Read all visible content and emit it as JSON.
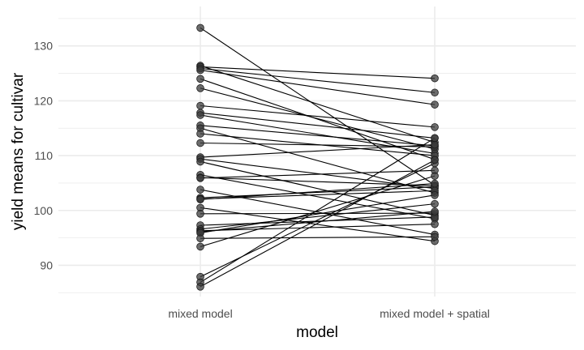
{
  "chart_data": {
    "type": "line",
    "xlabel": "model",
    "ylabel": "yield means for cultivar",
    "categories": [
      "mixed model",
      "mixed model + spatial"
    ],
    "ylim": [
      84.3,
      137.2
    ],
    "yticks": [
      90,
      100,
      110,
      120,
      130
    ],
    "grid": true,
    "legend": "none",
    "colors": {
      "line": "#000000",
      "point": "#3c3c3c",
      "grid": "#ebebeb",
      "background": "#ffffff"
    },
    "series": [
      {
        "values": [
          133.3,
          104.6
        ]
      },
      {
        "values": [
          126.4,
          112.4
        ]
      },
      {
        "values": [
          126.2,
          124.1
        ]
      },
      {
        "values": [
          125.9,
          121.5
        ]
      },
      {
        "values": [
          125.6,
          119.3
        ]
      },
      {
        "values": [
          124.0,
          109.3
        ]
      },
      {
        "values": [
          122.3,
          111.2
        ]
      },
      {
        "values": [
          119.1,
          115.2
        ]
      },
      {
        "values": [
          117.8,
          113.2
        ]
      },
      {
        "values": [
          117.4,
          110.4
        ]
      },
      {
        "values": [
          115.5,
          111.8
        ]
      },
      {
        "values": [
          115.0,
          103.2
        ]
      },
      {
        "values": [
          114.0,
          110.0
        ]
      },
      {
        "values": [
          112.3,
          111.6
        ]
      },
      {
        "values": [
          109.7,
          112.0
        ]
      },
      {
        "values": [
          109.4,
          104.0
        ]
      },
      {
        "values": [
          108.9,
          99.1
        ]
      },
      {
        "values": [
          106.5,
          98.5
        ]
      },
      {
        "values": [
          106.0,
          104.5
        ]
      },
      {
        "values": [
          105.9,
          107.3
        ]
      },
      {
        "values": [
          103.8,
          95.6
        ]
      },
      {
        "values": [
          102.3,
          104.3
        ]
      },
      {
        "values": [
          102.1,
          103.6
        ]
      },
      {
        "values": [
          102.0,
          104.9
        ]
      },
      {
        "values": [
          100.5,
          94.4
        ]
      },
      {
        "values": [
          99.4,
          99.5
        ]
      },
      {
        "values": [
          97.3,
          98.8
        ]
      },
      {
        "values": [
          96.6,
          101.2
        ]
      },
      {
        "values": [
          96.3,
          97.5
        ]
      },
      {
        "values": [
          96.1,
          99.8
        ]
      },
      {
        "values": [
          95.9,
          102.8
        ]
      },
      {
        "values": [
          94.9,
          95.2
        ]
      },
      {
        "values": [
          93.4,
          106.3
        ]
      },
      {
        "values": [
          87.9,
          108.6
        ]
      },
      {
        "values": [
          86.9,
          113.2
        ]
      },
      {
        "values": [
          86.1,
          109.2
        ]
      }
    ]
  }
}
